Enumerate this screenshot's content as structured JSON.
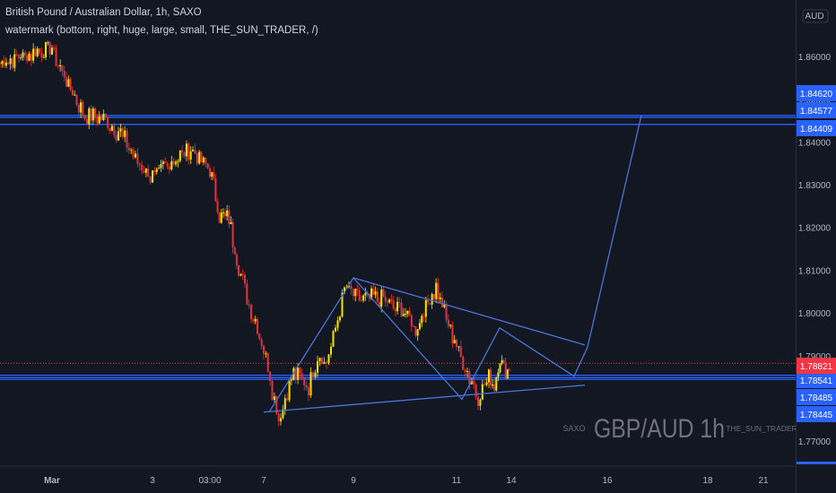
{
  "header": {
    "title": "British Pound / Australian Dollar, 1h, SAXO",
    "indicator": "watermark (bottom, right, huge, large, small, THE_SUN_TRADER, /)"
  },
  "watermark": {
    "left": "SAXO",
    "main": "GBP/AUD 1h",
    "right": "THE_SUN_TRADER"
  },
  "colors": {
    "background": "#131722",
    "up": "#f5e400",
    "down": "#e2333c",
    "drawing": "#2962ff",
    "pattern": "#4a74d8",
    "last_price": "#f23645"
  },
  "chart_data": {
    "type": "candlestick",
    "title": "British Pound / Australian Dollar, 1h, SAXO",
    "y_axis": {
      "unit": "AUD",
      "range": [
        1.765,
        1.869
      ],
      "ticks": [
        1.86,
        1.85,
        1.84,
        1.83,
        1.82,
        1.81,
        1.8,
        1.79,
        1.78,
        1.77
      ]
    },
    "x_axis": {
      "labels": [
        "Mar",
        "3",
        "03:00",
        "7",
        "9",
        "11",
        "14",
        "16",
        "18",
        "21"
      ]
    },
    "price_path": [
      {
        "t": "Feb 28",
        "p": 1.8585
      },
      {
        "t": "Mar 1",
        "p": 1.862
      },
      {
        "t": "Mar 1",
        "p": 1.853
      },
      {
        "t": "Mar 1",
        "p": 1.8465
      },
      {
        "t": "Mar 2",
        "p": 1.8455
      },
      {
        "t": "Mar 2",
        "p": 1.8425
      },
      {
        "t": "Mar 2",
        "p": 1.8365
      },
      {
        "t": "Mar 3",
        "p": 1.8315
      },
      {
        "t": "Mar 3",
        "p": 1.8355
      },
      {
        "t": "Mar 3",
        "p": 1.838
      },
      {
        "t": "Mar 4",
        "p": 1.834
      },
      {
        "t": "Mar 4",
        "p": 1.8225
      },
      {
        "t": "Mar 4",
        "p": 1.822
      },
      {
        "t": "Mar 6",
        "p": 1.81
      },
      {
        "t": "Mar 7",
        "p": 1.792
      },
      {
        "t": "Mar 7",
        "p": 1.775
      },
      {
        "t": "Mar 7",
        "p": 1.786
      },
      {
        "t": "Mar 8",
        "p": 1.783
      },
      {
        "t": "Mar 8",
        "p": 1.79
      },
      {
        "t": "Mar 8",
        "p": 1.7885
      },
      {
        "t": "Mar 8",
        "p": 1.796
      },
      {
        "t": "Mar 8",
        "p": 1.806
      },
      {
        "t": "Mar 9",
        "p": 1.8035
      },
      {
        "t": "Mar 9",
        "p": 1.8035
      },
      {
        "t": "Mar 10",
        "p": 1.8
      },
      {
        "t": "Mar 10",
        "p": 1.796
      },
      {
        "t": "Mar 10",
        "p": 1.8015
      },
      {
        "t": "Mar 10",
        "p": 1.806
      },
      {
        "t": "Mar 10",
        "p": 1.7985
      },
      {
        "t": "Mar 11",
        "p": 1.7925
      },
      {
        "t": "Mar 11",
        "p": 1.786
      },
      {
        "t": "Mar 11",
        "p": 1.7805
      },
      {
        "t": "Mar 12",
        "p": 1.7845
      },
      {
        "t": "Mar 12",
        "p": 1.7835
      },
      {
        "t": "Mar 12",
        "p": 1.7895
      },
      {
        "t": "Mar 12",
        "p": 1.7865
      },
      {
        "t": "Mar 13",
        "p": 1.7885
      }
    ],
    "horizontal_levels": [
      {
        "price_label": "1.84620",
        "price": 1.8462
      },
      {
        "price_label": "1.84577",
        "price": 1.84577
      },
      {
        "price_label": "1.84409",
        "price": 1.84409
      },
      {
        "price_label": "1.78541",
        "price": 1.78541
      },
      {
        "price_label": "1.78485",
        "price": 1.78485
      },
      {
        "price_label": "1.78445",
        "price": 1.78445
      }
    ],
    "last_price": {
      "label": "1.78821",
      "price": 1.78821
    },
    "trendlines": [
      {
        "from": {
          "t": "Mar 7",
          "p": 1.7768
        },
        "to": {
          "t": "Mar 15",
          "p": 1.7831
        }
      },
      {
        "from": {
          "t": "Mar 9",
          "p": 1.8082
        },
        "to": {
          "t": "Mar 15",
          "p": 1.7925
        }
      }
    ],
    "pattern_path": [
      {
        "t": "Mar 7",
        "p": 1.7768
      },
      {
        "t": "Mar 9",
        "p": 1.8082
      },
      {
        "t": "Mar 11",
        "p": 1.7798
      },
      {
        "t": "Mar 12",
        "p": 1.7965
      },
      {
        "t": "Mar 14",
        "p": 1.7852
      },
      {
        "t": "Mar 15",
        "p": 1.792
      },
      {
        "t": "Mar 16",
        "p": 1.8462
      }
    ],
    "grid": false
  }
}
